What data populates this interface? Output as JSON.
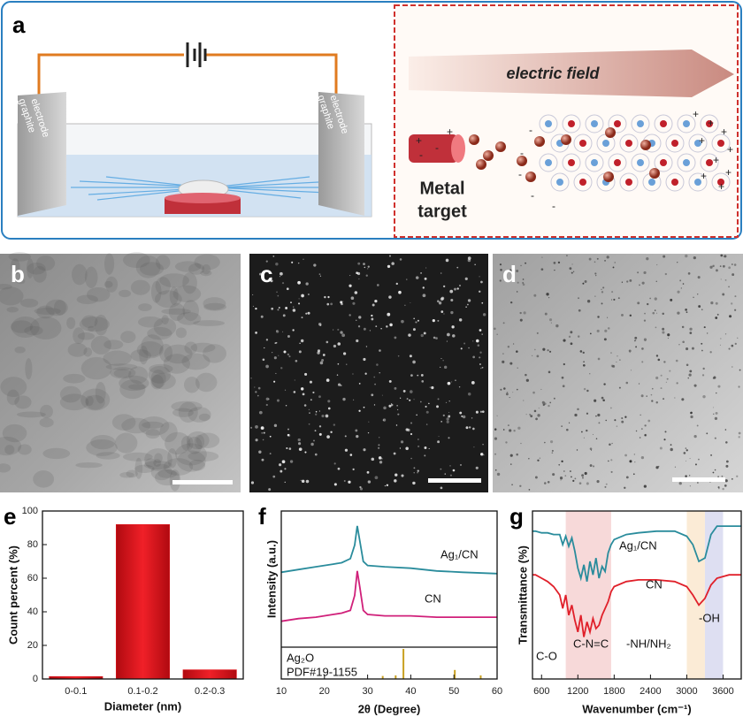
{
  "schematic": {
    "label": "a",
    "electrode_label": [
      "graphite",
      "electrode"
    ],
    "field_label": "electric field",
    "target_label": [
      "Metal",
      "target"
    ],
    "charge_signs": {
      "plus": "+",
      "minus": "-"
    }
  },
  "micrographs": [
    {
      "label": "b"
    },
    {
      "label": "c"
    },
    {
      "label": "d"
    }
  ],
  "chart_data": [
    {
      "type": "bar",
      "panel_label": "e",
      "categories": [
        "0-0.1",
        "0.1-0.2",
        "0.2-0.3"
      ],
      "values": [
        1.5,
        92,
        5.5
      ],
      "color": "#e8141b",
      "ylim": [
        0,
        100
      ],
      "yticks": [
        0,
        20,
        40,
        60,
        80,
        100
      ],
      "xlabel": "Diameter (nm)",
      "ylabel": "Count percent (%)"
    },
    {
      "type": "line",
      "panel_label": "f",
      "x": [
        10,
        14,
        18,
        22,
        24,
        26,
        27,
        27.6,
        28.2,
        29,
        30,
        34,
        40,
        46,
        52,
        60
      ],
      "series": [
        {
          "name": "Ag₁/CN",
          "color": "#2a8c9c",
          "values": [
            55,
            57,
            59,
            61,
            62,
            65,
            75,
            89,
            78,
            63,
            60,
            59,
            58,
            56,
            55,
            54
          ]
        },
        {
          "name": "CN",
          "color": "#d0207a",
          "values": [
            19,
            21,
            22,
            24,
            25,
            27,
            38,
            56,
            44,
            27,
            24,
            23,
            23,
            22,
            22,
            22
          ]
        }
      ],
      "xlim": [
        10,
        60
      ],
      "xticks": [
        10,
        20,
        30,
        40,
        50,
        60
      ],
      "ylim": [
        0,
        100
      ],
      "xlabel": "2θ (Degree)",
      "ylabel": "Intensity (a.u.)",
      "reference": {
        "name": "Ag₂O",
        "card": "PDF#19-1155",
        "color": "#c8a020",
        "x": [
          33.5,
          36.5,
          38.3,
          50.2,
          56.2
        ],
        "values": [
          10,
          12,
          100,
          30,
          12
        ],
        "ylim": [
          0,
          100
        ]
      }
    },
    {
      "type": "line",
      "panel_label": "g",
      "x": [
        450,
        500,
        600,
        700,
        800,
        900,
        950,
        1000,
        1050,
        1100,
        1150,
        1200,
        1250,
        1300,
        1350,
        1400,
        1450,
        1500,
        1550,
        1600,
        1650,
        1700,
        1750,
        1800,
        2000,
        2200,
        2500,
        2800,
        3000,
        3100,
        3200,
        3300,
        3400,
        3500,
        3700,
        3900
      ],
      "series": [
        {
          "name": "Ag₁/CN",
          "color": "#2a8c9c",
          "values": [
            88,
            88,
            87,
            87,
            86,
            86,
            80,
            85,
            79,
            84,
            76,
            66,
            60,
            68,
            58,
            70,
            62,
            72,
            60,
            67,
            64,
            75,
            80,
            83,
            86,
            87,
            88,
            88,
            85,
            80,
            70,
            72,
            86,
            91,
            91,
            91
          ]
        },
        {
          "name": "CN",
          "color": "#e0202a",
          "values": [
            62,
            62,
            60,
            58,
            55,
            50,
            42,
            50,
            38,
            44,
            35,
            28,
            38,
            25,
            34,
            28,
            36,
            30,
            32,
            38,
            42,
            46,
            52,
            55,
            58,
            59,
            59,
            58,
            55,
            50,
            44,
            48,
            56,
            60,
            62,
            62
          ]
        }
      ],
      "xlim": [
        450,
        3900
      ],
      "xticks": [
        600,
        1200,
        1800,
        2400,
        3000,
        3600
      ],
      "ylim": [
        0,
        100
      ],
      "xlabel": "Wavenumber (cm⁻¹)",
      "ylabel": "Transmittance (%)",
      "bands": [
        {
          "range": [
            1000,
            1750
          ],
          "color": "#f7d9d9"
        },
        {
          "range": [
            3000,
            3300
          ],
          "color": "#fbebd6"
        },
        {
          "range": [
            3300,
            3600
          ],
          "color": "#dedff2"
        }
      ],
      "annotations": [
        "C-O",
        "C-N=C",
        "-NH/NH₂",
        "-OH"
      ]
    }
  ]
}
